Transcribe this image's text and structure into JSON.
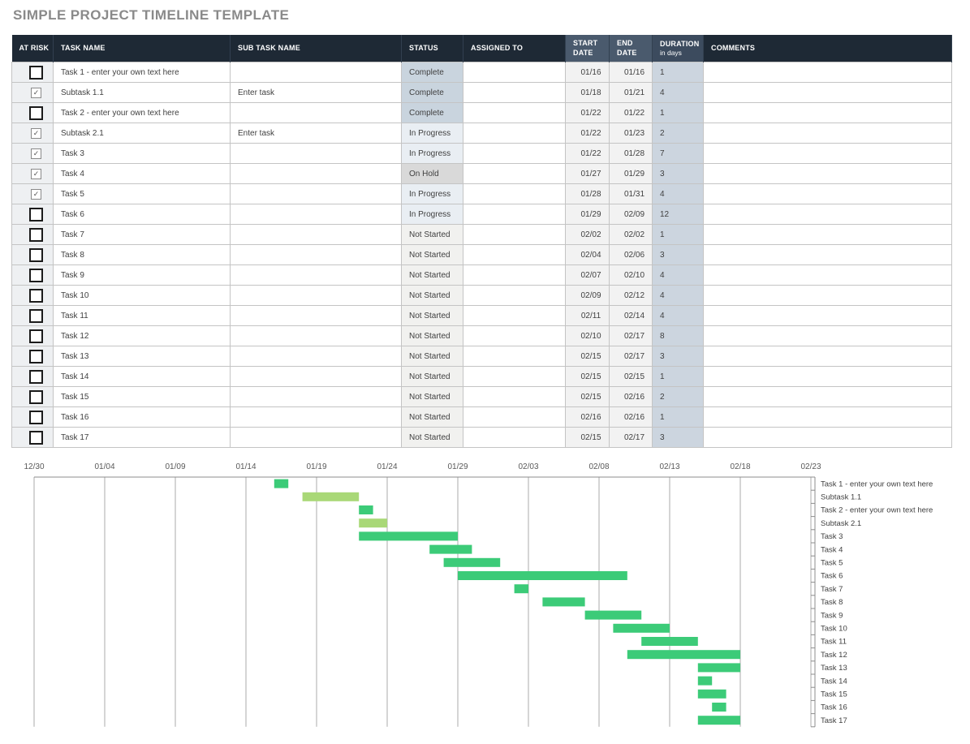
{
  "title": "SIMPLE PROJECT TIMELINE TEMPLATE",
  "colors": {
    "header_dark": "#1e2935",
    "header_slate": "#4a5a6d",
    "header_duration": "#3c4b5e",
    "at_risk_cell": "#eef0f2",
    "date_cell": "#f2f2f2",
    "duration_cell": "#ccd5df",
    "task_bar": "#3ccb78",
    "subtask_bar": "#a9d877",
    "gridline": "#ababab",
    "status": {
      "Complete": "#c9d4de",
      "In Progress": "#e9eef3",
      "On Hold": "#d9d9d9",
      "Not Started": "#f1f1ef"
    }
  },
  "table": {
    "headers": {
      "at_risk": "AT RISK",
      "task_name": "TASK NAME",
      "sub_task_name": "SUB TASK NAME",
      "status": "STATUS",
      "assigned_to": "ASSIGNED TO",
      "start_date": "START DATE",
      "end_date": "END DATE",
      "duration": "DURATION",
      "duration_sub": "in days",
      "comments": "COMMENTS"
    },
    "rows": [
      {
        "at_risk": false,
        "task": "Task 1 - enter your own text here",
        "subtask": "",
        "status": "Complete",
        "assigned": "",
        "start": "01/16",
        "end": "01/16",
        "duration": "1",
        "comments": ""
      },
      {
        "at_risk": true,
        "task": "Subtask 1.1",
        "subtask": "Enter task",
        "status": "Complete",
        "assigned": "",
        "start": "01/18",
        "end": "01/21",
        "duration": "4",
        "comments": ""
      },
      {
        "at_risk": false,
        "task": "Task 2 - enter your own text here",
        "subtask": "",
        "status": "Complete",
        "assigned": "",
        "start": "01/22",
        "end": "01/22",
        "duration": "1",
        "comments": ""
      },
      {
        "at_risk": true,
        "task": "Subtask 2.1",
        "subtask": "Enter task",
        "status": "In Progress",
        "assigned": "",
        "start": "01/22",
        "end": "01/23",
        "duration": "2",
        "comments": ""
      },
      {
        "at_risk": true,
        "task": "Task 3",
        "subtask": "",
        "status": "In Progress",
        "assigned": "",
        "start": "01/22",
        "end": "01/28",
        "duration": "7",
        "comments": ""
      },
      {
        "at_risk": true,
        "task": "Task 4",
        "subtask": "",
        "status": "On Hold",
        "assigned": "",
        "start": "01/27",
        "end": "01/29",
        "duration": "3",
        "comments": ""
      },
      {
        "at_risk": true,
        "task": "Task 5",
        "subtask": "",
        "status": "In Progress",
        "assigned": "",
        "start": "01/28",
        "end": "01/31",
        "duration": "4",
        "comments": ""
      },
      {
        "at_risk": false,
        "task": "Task 6",
        "subtask": "",
        "status": "In Progress",
        "assigned": "",
        "start": "01/29",
        "end": "02/09",
        "duration": "12",
        "comments": ""
      },
      {
        "at_risk": false,
        "task": "Task 7",
        "subtask": "",
        "status": "Not Started",
        "assigned": "",
        "start": "02/02",
        "end": "02/02",
        "duration": "1",
        "comments": ""
      },
      {
        "at_risk": false,
        "task": "Task 8",
        "subtask": "",
        "status": "Not Started",
        "assigned": "",
        "start": "02/04",
        "end": "02/06",
        "duration": "3",
        "comments": ""
      },
      {
        "at_risk": false,
        "task": "Task 9",
        "subtask": "",
        "status": "Not Started",
        "assigned": "",
        "start": "02/07",
        "end": "02/10",
        "duration": "4",
        "comments": ""
      },
      {
        "at_risk": false,
        "task": "Task 10",
        "subtask": "",
        "status": "Not Started",
        "assigned": "",
        "start": "02/09",
        "end": "02/12",
        "duration": "4",
        "comments": ""
      },
      {
        "at_risk": false,
        "task": "Task 11",
        "subtask": "",
        "status": "Not Started",
        "assigned": "",
        "start": "02/11",
        "end": "02/14",
        "duration": "4",
        "comments": ""
      },
      {
        "at_risk": false,
        "task": "Task 12",
        "subtask": "",
        "status": "Not Started",
        "assigned": "",
        "start": "02/10",
        "end": "02/17",
        "duration": "8",
        "comments": ""
      },
      {
        "at_risk": false,
        "task": "Task 13",
        "subtask": "",
        "status": "Not Started",
        "assigned": "",
        "start": "02/15",
        "end": "02/17",
        "duration": "3",
        "comments": ""
      },
      {
        "at_risk": false,
        "task": "Task 14",
        "subtask": "",
        "status": "Not Started",
        "assigned": "",
        "start": "02/15",
        "end": "02/15",
        "duration": "1",
        "comments": ""
      },
      {
        "at_risk": false,
        "task": "Task 15",
        "subtask": "",
        "status": "Not Started",
        "assigned": "",
        "start": "02/15",
        "end": "02/16",
        "duration": "2",
        "comments": ""
      },
      {
        "at_risk": false,
        "task": "Task 16",
        "subtask": "",
        "status": "Not Started",
        "assigned": "",
        "start": "02/16",
        "end": "02/16",
        "duration": "1",
        "comments": ""
      },
      {
        "at_risk": false,
        "task": "Task 17",
        "subtask": "",
        "status": "Not Started",
        "assigned": "",
        "start": "02/15",
        "end": "02/17",
        "duration": "3",
        "comments": ""
      }
    ]
  },
  "chart_data": {
    "type": "bar",
    "subtype": "gantt",
    "grid": true,
    "x_ticks": [
      "12/30",
      "01/04",
      "01/09",
      "01/14",
      "01/19",
      "01/24",
      "01/29",
      "02/03",
      "02/08",
      "02/13",
      "02/18",
      "02/23"
    ],
    "x_range": [
      "12/30",
      "02/24"
    ],
    "category_axis_position": "right",
    "bars": [
      {
        "label": "Task 1 - enter your own text here",
        "start": "01/16",
        "end": "01/16",
        "duration": 1,
        "kind": "task"
      },
      {
        "label": "Subtask 1.1",
        "start": "01/18",
        "end": "01/21",
        "duration": 4,
        "kind": "subtask"
      },
      {
        "label": "Task 2 - enter your own text here",
        "start": "01/22",
        "end": "01/22",
        "duration": 1,
        "kind": "task"
      },
      {
        "label": "Subtask 2.1",
        "start": "01/22",
        "end": "01/23",
        "duration": 2,
        "kind": "subtask"
      },
      {
        "label": "Task 3",
        "start": "01/22",
        "end": "01/28",
        "duration": 7,
        "kind": "task"
      },
      {
        "label": "Task 4",
        "start": "01/27",
        "end": "01/29",
        "duration": 3,
        "kind": "task"
      },
      {
        "label": "Task 5",
        "start": "01/28",
        "end": "01/31",
        "duration": 4,
        "kind": "task"
      },
      {
        "label": "Task 6",
        "start": "01/29",
        "end": "02/09",
        "duration": 12,
        "kind": "task"
      },
      {
        "label": "Task 7",
        "start": "02/02",
        "end": "02/02",
        "duration": 1,
        "kind": "task"
      },
      {
        "label": "Task 8",
        "start": "02/04",
        "end": "02/06",
        "duration": 3,
        "kind": "task"
      },
      {
        "label": "Task 9",
        "start": "02/07",
        "end": "02/10",
        "duration": 4,
        "kind": "task"
      },
      {
        "label": "Task 10",
        "start": "02/09",
        "end": "02/12",
        "duration": 4,
        "kind": "task"
      },
      {
        "label": "Task 11",
        "start": "02/11",
        "end": "02/14",
        "duration": 4,
        "kind": "task"
      },
      {
        "label": "Task 12",
        "start": "02/10",
        "end": "02/17",
        "duration": 8,
        "kind": "task"
      },
      {
        "label": "Task 13",
        "start": "02/15",
        "end": "02/17",
        "duration": 3,
        "kind": "task"
      },
      {
        "label": "Task 14",
        "start": "02/15",
        "end": "02/15",
        "duration": 1,
        "kind": "task"
      },
      {
        "label": "Task 15",
        "start": "02/15",
        "end": "02/16",
        "duration": 2,
        "kind": "task"
      },
      {
        "label": "Task 16",
        "start": "02/16",
        "end": "02/16",
        "duration": 1,
        "kind": "task"
      },
      {
        "label": "Task 17",
        "start": "02/15",
        "end": "02/17",
        "duration": 3,
        "kind": "task"
      }
    ]
  }
}
